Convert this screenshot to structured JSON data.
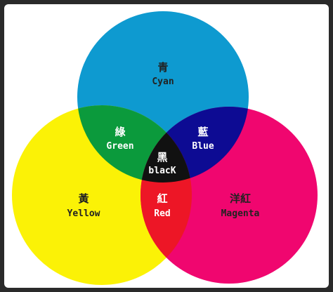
{
  "colors": {
    "background": "#ffffff",
    "cyan": "#0e9ad0",
    "yellow": "#fbf206",
    "magenta": "#f0066f",
    "green": "#0b9a3c",
    "blue": "#0d0b93",
    "red": "#ed1626",
    "black": "#111111",
    "label_dark": "#222222",
    "label_light": "#ffffff"
  },
  "regions": {
    "cyan": {
      "cjk": "青",
      "en": "Cyan"
    },
    "yellow": {
      "cjk": "黃",
      "en": "Yellow"
    },
    "magenta": {
      "cjk": "洋紅",
      "en": "Magenta"
    },
    "green": {
      "cjk": "綠",
      "en": "Green"
    },
    "blue": {
      "cjk": "藍",
      "en": "Blue"
    },
    "red": {
      "cjk": "紅",
      "en": "Red"
    },
    "black": {
      "cjk": "黑",
      "en": "blacK"
    }
  }
}
